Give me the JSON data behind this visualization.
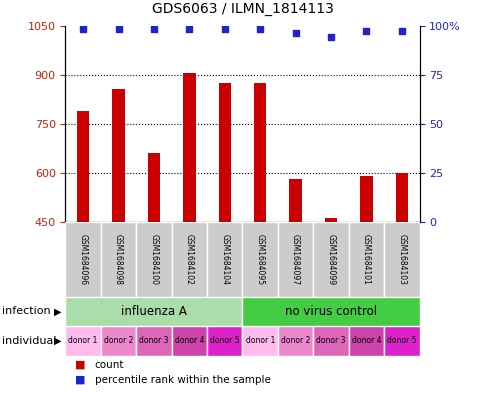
{
  "title": "GDS6063 / ILMN_1814113",
  "samples": [
    "GSM1684096",
    "GSM1684098",
    "GSM1684100",
    "GSM1684102",
    "GSM1684104",
    "GSM1684095",
    "GSM1684097",
    "GSM1684099",
    "GSM1684101",
    "GSM1684103"
  ],
  "counts": [
    790,
    855,
    660,
    905,
    875,
    875,
    580,
    462,
    592,
    600
  ],
  "percentile_ranks": [
    98,
    98,
    98,
    98,
    98,
    98,
    96,
    94,
    97,
    97
  ],
  "ylim_left": [
    450,
    1050
  ],
  "ylim_right": [
    0,
    100
  ],
  "left_ticks": [
    450,
    600,
    750,
    900,
    1050
  ],
  "right_ticks": [
    0,
    25,
    50,
    75,
    100
  ],
  "bar_color": "#cc0000",
  "dot_color": "#2222cc",
  "infection_groups": [
    {
      "label": "influenza A",
      "start": 0,
      "end": 5,
      "color": "#aaddaa"
    },
    {
      "label": "no virus control",
      "start": 5,
      "end": 10,
      "color": "#44cc44"
    }
  ],
  "individual_colors": [
    "#ffbbee",
    "#ee88cc",
    "#dd66bb",
    "#cc44aa",
    "#dd22cc"
  ],
  "individual_labels": [
    "donor 1",
    "donor 2",
    "donor 3",
    "donor 4",
    "donor 5",
    "donor 1",
    "donor 2",
    "donor 3",
    "donor 4",
    "donor 5"
  ],
  "bg_color": "#cccccc",
  "left_label_color": "#cc2200",
  "right_label_color": "#2222cc",
  "bar_width": 0.35
}
